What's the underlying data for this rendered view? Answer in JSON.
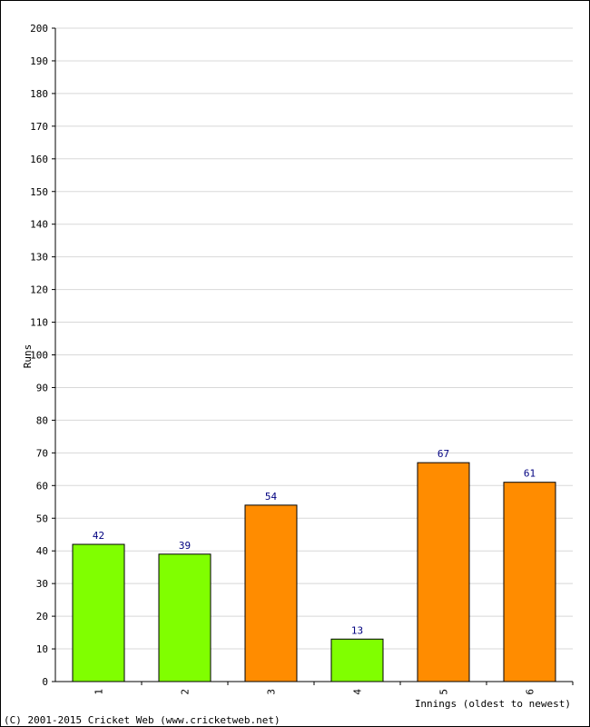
{
  "chart_data": {
    "type": "bar",
    "categories": [
      "1",
      "2",
      "3",
      "4",
      "5",
      "6"
    ],
    "values": [
      42,
      39,
      54,
      13,
      67,
      61
    ],
    "bar_colors": [
      "#80ff00",
      "#80ff00",
      "#ff8c00",
      "#80ff00",
      "#ff8c00",
      "#ff8c00"
    ],
    "ylabel": "Runs",
    "xlabel": "Innings (oldest to newest)",
    "ylim": [
      0,
      200
    ],
    "ytick_step": 10,
    "grid": true,
    "label_color": "#000080",
    "grid_color": "#d8d8d8"
  },
  "footer": {
    "copyright": "(C) 2001-2015 Cricket Web (www.cricketweb.net)"
  }
}
